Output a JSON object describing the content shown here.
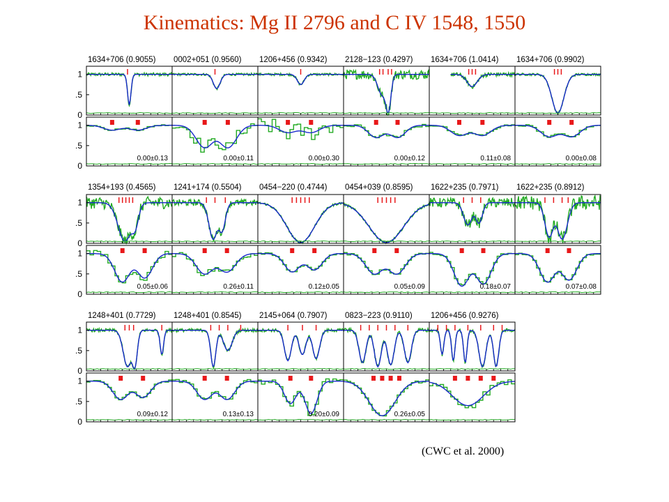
{
  "title": "Kinematics: Mg II 2796 and C IV 1548, 1550",
  "citation": "(CWC et al. 2000)",
  "colors": {
    "title": "#cc3300",
    "data": "#22aa22",
    "model": "#1a2acc",
    "ticks": "#e8181a",
    "axes": "#000000"
  },
  "chart_data": {
    "type": "line",
    "ylim": [
      0,
      1.2
    ],
    "yticks": [
      "1",
      ".5",
      "0"
    ],
    "grid": false,
    "series_names": {
      "data": "",
      "model": ""
    },
    "blocks": [
      {
        "panels": [
          {
            "label": "1634+706  (0.9055)",
            "mg": {
              "lines": [
                {
                  "c": 0.5,
                  "d": 0.75,
                  "w": 0.02
                }
              ],
              "noise": 0.04,
              "ticks": [
                0.48
              ]
            },
            "civ": {
              "lines": [
                {
                  "c": 0.3,
                  "d": 0.12,
                  "w": 0.1
                },
                {
                  "c": 0.6,
                  "d": 0.12,
                  "w": 0.1
                }
              ],
              "noise": 0.02,
              "ticks": [
                0.3,
                0.6
              ],
              "value": "0.00±0.13"
            }
          },
          {
            "label": "0002+051  (0.9560)",
            "mg": {
              "lines": [
                {
                  "c": 0.52,
                  "d": 0.35,
                  "w": 0.04
                }
              ],
              "noise": 0.03,
              "ticks": [
                0.5
              ]
            },
            "civ": {
              "lines": [
                {
                  "c": 0.38,
                  "d": 0.55,
                  "w": 0.1
                },
                {
                  "c": 0.65,
                  "d": 0.55,
                  "w": 0.1
                }
              ],
              "noise": 0.15,
              "ticks": [
                0.38,
                0.65
              ],
              "value": "0.00±0.11"
            }
          },
          {
            "label": "1206+456  (0.9342)",
            "mg": {
              "lines": [
                {
                  "c": 0.5,
                  "d": 0.25,
                  "w": 0.04
                }
              ],
              "noise": 0.03,
              "ticks": [
                0.5
              ]
            },
            "civ": {
              "lines": [
                {
                  "c": 0.35,
                  "d": 0.18,
                  "w": 0.1
                },
                {
                  "c": 0.62,
                  "d": 0.18,
                  "w": 0.1
                }
              ],
              "noise": 0.2,
              "ticks": [
                0.35,
                0.62
              ],
              "value": "0.00±0.30"
            }
          },
          {
            "label": "2128−123  (0.4297)",
            "mg": {
              "lines": [
                {
                  "c": 0.45,
                  "d": 0.5,
                  "w": 0.05
                },
                {
                  "c": 0.52,
                  "d": 0.95,
                  "w": 0.03
                }
              ],
              "noise": 0.12,
              "ticks": [
                0.42,
                0.46,
                0.52,
                0.56
              ]
            },
            "civ": {
              "lines": [
                {
                  "c": 0.38,
                  "d": 0.3,
                  "w": 0.09
                },
                {
                  "c": 0.63,
                  "d": 0.3,
                  "w": 0.09
                }
              ],
              "noise": 0.04,
              "ticks": [
                0.38,
                0.63
              ],
              "value": "0.00±0.12"
            }
          },
          {
            "label": "1634+706  (1.0414)",
            "mg": {
              "lines": [
                {
                  "c": 0.5,
                  "d": 0.3,
                  "w": 0.06
                }
              ],
              "noise": 0.05,
              "ticks": [
                0.46,
                0.5,
                0.54
              ],
              "start": 0.25
            },
            "civ": {
              "lines": [
                {
                  "c": 0.35,
                  "d": 0.25,
                  "w": 0.1
                },
                {
                  "c": 0.62,
                  "d": 0.25,
                  "w": 0.1
                }
              ],
              "noise": 0.03,
              "ticks": [
                0.35,
                0.62
              ],
              "value": "0.11±0.08"
            }
          },
          {
            "label": "1634+706  (0.9902)",
            "mg": {
              "lines": [
                {
                  "c": 0.5,
                  "d": 0.95,
                  "w": 0.07
                }
              ],
              "noise": 0.03,
              "ticks": [
                0.46,
                0.5,
                0.54
              ]
            },
            "civ": {
              "lines": [
                {
                  "c": 0.4,
                  "d": 0.28,
                  "w": 0.1
                },
                {
                  "c": 0.66,
                  "d": 0.28,
                  "w": 0.1
                }
              ],
              "noise": 0.03,
              "ticks": [
                0.4,
                0.66
              ],
              "value": "0.00±0.08"
            }
          }
        ]
      },
      {
        "panels": [
          {
            "label": "1354+193  (0.4565)",
            "mg": {
              "lines": [
                {
                  "c": 0.45,
                  "d": 0.95,
                  "w": 0.08
                },
                {
                  "c": 0.56,
                  "d": 0.6,
                  "w": 0.04
                }
              ],
              "noise": 0.15,
              "ticks": [
                0.38,
                0.42,
                0.46,
                0.5,
                0.54
              ]
            },
            "civ": {
              "lines": [
                {
                  "c": 0.42,
                  "d": 0.7,
                  "w": 0.09
                },
                {
                  "c": 0.68,
                  "d": 0.6,
                  "w": 0.09
                }
              ],
              "noise": 0.08,
              "ticks": [
                0.42,
                0.68
              ],
              "value": "0.05±0.06"
            }
          },
          {
            "label": "1241+174  (0.5504)",
            "mg": {
              "lines": [
                {
                  "c": 0.48,
                  "d": 0.9,
                  "w": 0.05
                },
                {
                  "c": 0.58,
                  "d": 0.7,
                  "w": 0.04
                }
              ],
              "noise": 0.08,
              "ticks": [
                0.4,
                0.5,
                0.62
              ]
            },
            "civ": {
              "lines": [
                {
                  "c": 0.38,
                  "d": 0.5,
                  "w": 0.1
                },
                {
                  "c": 0.64,
                  "d": 0.45,
                  "w": 0.1
                }
              ],
              "noise": 0.08,
              "ticks": [
                0.38,
                0.64
              ],
              "value": "0.26±0.11"
            }
          },
          {
            "label": "0454−220  (0.4744)",
            "mg": {
              "lines": [
                {
                  "c": 0.5,
                  "d": 0.98,
                  "w": 0.16
                }
              ],
              "noise": 0.03,
              "ticks": [
                0.4,
                0.45,
                0.5,
                0.55,
                0.6
              ]
            },
            "civ": {
              "lines": [
                {
                  "c": 0.4,
                  "d": 0.45,
                  "w": 0.09
                },
                {
                  "c": 0.66,
                  "d": 0.4,
                  "w": 0.09
                }
              ],
              "noise": 0.03,
              "ticks": [
                0.4,
                0.66
              ],
              "value": "0.12±0.05"
            }
          },
          {
            "label": "0454+039  (0.8595)",
            "mg": {
              "lines": [
                {
                  "c": 0.5,
                  "d": 0.98,
                  "w": 0.2
                }
              ],
              "noise": 0.03,
              "ticks": [
                0.4,
                0.45,
                0.5,
                0.55,
                0.6
              ]
            },
            "civ": {
              "lines": [
                {
                  "c": 0.36,
                  "d": 0.5,
                  "w": 0.1
                },
                {
                  "c": 0.62,
                  "d": 0.5,
                  "w": 0.1
                }
              ],
              "noise": 0.03,
              "ticks": [
                0.36,
                0.62
              ],
              "value": "0.05±0.09"
            }
          },
          {
            "label": "1622+235  (0.7971)",
            "mg": {
              "lines": [
                {
                  "c": 0.45,
                  "d": 0.55,
                  "w": 0.05
                },
                {
                  "c": 0.58,
                  "d": 0.5,
                  "w": 0.04
                }
              ],
              "noise": 0.12,
              "ticks": [
                0.4,
                0.5,
                0.6
              ]
            },
            "civ": {
              "lines": [
                {
                  "c": 0.38,
                  "d": 0.8,
                  "w": 0.09
                },
                {
                  "c": 0.63,
                  "d": 0.75,
                  "w": 0.09
                }
              ],
              "noise": 0.04,
              "ticks": [
                0.38,
                0.63
              ],
              "value": "0.18±0.07"
            }
          },
          {
            "label": "1622+235  (0.8912)",
            "mg": {
              "lines": [
                {
                  "c": 0.4,
                  "d": 0.85,
                  "w": 0.05
                },
                {
                  "c": 0.55,
                  "d": 0.9,
                  "w": 0.06
                }
              ],
              "noise": 0.18,
              "ticks": [
                0.35,
                0.45,
                0.55,
                0.62
              ]
            },
            "civ": {
              "lines": [
                {
                  "c": 0.38,
                  "d": 0.7,
                  "w": 0.09
                },
                {
                  "c": 0.63,
                  "d": 0.65,
                  "w": 0.09
                }
              ],
              "noise": 0.03,
              "ticks": [
                0.38,
                0.63
              ],
              "value": "0.07±0.08"
            }
          }
        ]
      },
      {
        "panels": [
          {
            "label": "1248+401  (0.7729)",
            "mg": {
              "lines": [
                {
                  "c": 0.48,
                  "d": 0.9,
                  "w": 0.05
                },
                {
                  "c": 0.56,
                  "d": 0.95,
                  "w": 0.03
                },
                {
                  "c": 0.88,
                  "d": 0.6,
                  "w": 0.02
                }
              ],
              "noise": 0.04,
              "ticks": [
                0.45,
                0.5,
                0.55,
                0.88
              ]
            },
            "civ": {
              "lines": [
                {
                  "c": 0.4,
                  "d": 0.45,
                  "w": 0.09
                },
                {
                  "c": 0.66,
                  "d": 0.4,
                  "w": 0.09
                }
              ],
              "noise": 0.03,
              "ticks": [
                0.4,
                0.66
              ],
              "value": "0.09±0.12"
            }
          },
          {
            "label": "1248+401  (0.8545)",
            "mg": {
              "lines": [
                {
                  "c": 0.48,
                  "d": 0.9,
                  "w": 0.03
                },
                {
                  "c": 0.65,
                  "d": 0.5,
                  "w": 0.05
                }
              ],
              "noise": 0.04,
              "ticks": [
                0.45,
                0.55,
                0.65,
                0.8
              ]
            },
            "civ": {
              "lines": [
                {
                  "c": 0.38,
                  "d": 0.45,
                  "w": 0.09
                },
                {
                  "c": 0.64,
                  "d": 0.45,
                  "w": 0.09
                }
              ],
              "noise": 0.05,
              "ticks": [
                0.38,
                0.64
              ],
              "value": "0.13±0.13"
            }
          },
          {
            "label": "2145+064  (0.7907)",
            "mg": {
              "lines": [
                {
                  "c": 0.35,
                  "d": 0.75,
                  "w": 0.04
                },
                {
                  "c": 0.52,
                  "d": 0.6,
                  "w": 0.04
                },
                {
                  "c": 0.68,
                  "d": 0.7,
                  "w": 0.04
                }
              ],
              "noise": 0.04,
              "ticks": [
                0.35,
                0.52,
                0.68
              ]
            },
            "civ": {
              "lines": [
                {
                  "c": 0.38,
                  "d": 0.55,
                  "w": 0.07
                },
                {
                  "c": 0.62,
                  "d": 0.8,
                  "w": 0.07
                }
              ],
              "noise": 0.08,
              "ticks": [
                0.38,
                0.62
              ],
              "value": "0.20±0.09"
            }
          },
          {
            "label": "0823−223  (0.9110)",
            "mg": {
              "lines": [
                {
                  "c": 0.22,
                  "d": 0.8,
                  "w": 0.04
                },
                {
                  "c": 0.4,
                  "d": 0.9,
                  "w": 0.04
                },
                {
                  "c": 0.55,
                  "d": 0.85,
                  "w": 0.04
                },
                {
                  "c": 0.75,
                  "d": 0.8,
                  "w": 0.04
                }
              ],
              "noise": 0.05,
              "ticks": [
                0.2,
                0.3,
                0.4,
                0.5,
                0.6,
                0.75
              ]
            },
            "civ": {
              "lines": [
                {
                  "c": 0.45,
                  "d": 0.85,
                  "w": 0.15
                }
              ],
              "noise": 0.04,
              "ticks": [
                0.35,
                0.45,
                0.55,
                0.65
              ],
              "value": "0.26±0.05"
            }
          },
          {
            "label": "1206+456  (0.9276)",
            "mg": {
              "lines": [
                {
                  "c": 0.15,
                  "d": 0.6,
                  "w": 0.02
                },
                {
                  "c": 0.28,
                  "d": 0.75,
                  "w": 0.02
                },
                {
                  "c": 0.42,
                  "d": 0.8,
                  "w": 0.02
                },
                {
                  "c": 0.62,
                  "d": 0.9,
                  "w": 0.04
                },
                {
                  "c": 0.78,
                  "d": 0.9,
                  "w": 0.03
                }
              ],
              "noise": 0.04,
              "ticks": [
                0.1,
                0.2,
                0.3,
                0.45,
                0.6,
                0.75,
                0.85
              ]
            },
            "civ": {
              "lines": [
                {
                  "c": 0.45,
                  "d": 0.6,
                  "w": 0.18
                }
              ],
              "noise": 0.1,
              "ticks": [
                0.3,
                0.45,
                0.6,
                0.75
              ],
              "value": ""
            }
          }
        ]
      }
    ]
  }
}
